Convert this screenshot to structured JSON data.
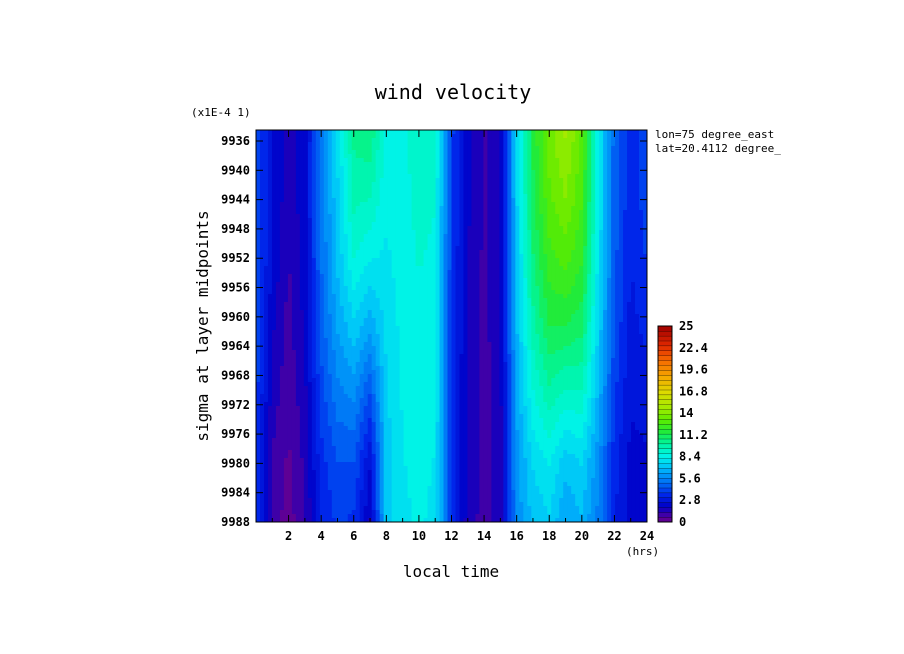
{
  "chart_data": {
    "type": "heatmap",
    "title": "wind velocity",
    "xlabel": "local time",
    "x_unit": "(hrs)",
    "ylabel": "sigma at layer midpoints",
    "y_scale_note": "(x1E-4 1)",
    "annotations": [
      "lon=75 degree_east",
      "lat=20.4112 degree_"
    ],
    "x_ticks": [
      "2",
      "4",
      "6",
      "8",
      "10",
      "12",
      "14",
      "16",
      "18",
      "20",
      "22",
      "24"
    ],
    "x_tick_values": [
      2,
      4,
      6,
      8,
      10,
      12,
      14,
      16,
      18,
      20,
      22,
      24
    ],
    "xlim": [
      0,
      24
    ],
    "y_ticks": [
      "9936",
      "9940",
      "9944",
      "9948",
      "9952",
      "9956",
      "9960",
      "9964",
      "9968",
      "9972",
      "9976",
      "9980",
      "9984",
      "9988"
    ],
    "y_tick_values": [
      9936,
      9940,
      9944,
      9948,
      9952,
      9956,
      9960,
      9964,
      9968,
      9972,
      9976,
      9980,
      9984,
      9988
    ],
    "ylim": [
      9934.5,
      9988
    ],
    "y_inverted": true,
    "colorbar": {
      "ticks": [
        "25",
        "22.4",
        "19.6",
        "16.8",
        "14",
        "11.2",
        "8.4",
        "5.6",
        "2.8",
        "0"
      ],
      "min": 0,
      "max": 25
    },
    "x_nodes": [
      0,
      1,
      2,
      3,
      4,
      5,
      6,
      7,
      8,
      9,
      10,
      11,
      12,
      13,
      14,
      15,
      16,
      17,
      18,
      19,
      20,
      21,
      22,
      23,
      24
    ],
    "y_nodes": [
      9934.5,
      9943.5,
      9952.5,
      9961.5,
      9970.5,
      9979.5,
      9988
    ],
    "z": [
      [
        4.2,
        2.6,
        1.5,
        2.2,
        5.2,
        7.6,
        10.2,
        10.6,
        8.5,
        8.6,
        9.1,
        8.9,
        4.0,
        2.0,
        1.2,
        1.8,
        7.6,
        11.4,
        13.5,
        14.5,
        13.1,
        8.4,
        4.7,
        3.4,
        4.0
      ],
      [
        4.3,
        2.6,
        1.4,
        2.3,
        5.1,
        7.4,
        9.6,
        9.4,
        8.3,
        8.5,
        9.0,
        8.8,
        3.9,
        2.0,
        1.2,
        1.8,
        7.4,
        11.1,
        13.0,
        13.8,
        12.6,
        8.3,
        4.7,
        3.3,
        4.1
      ],
      [
        4.3,
        2.4,
        1.2,
        2.2,
        5.0,
        7.0,
        8.7,
        8.1,
        8.0,
        8.4,
        8.8,
        8.6,
        3.8,
        1.9,
        1.1,
        1.7,
        7.1,
        10.5,
        12.2,
        12.7,
        11.9,
        8.0,
        4.6,
        3.1,
        3.8
      ],
      [
        4.2,
        2.0,
        1.0,
        2.0,
        4.6,
        6.3,
        7.3,
        6.4,
        7.7,
        8.3,
        8.6,
        8.4,
        3.7,
        1.8,
        1.1,
        1.6,
        6.8,
        9.7,
        11.2,
        11.2,
        10.8,
        7.5,
        4.3,
        2.9,
        3.3
      ],
      [
        4.0,
        1.6,
        0.8,
        1.7,
        4.1,
        5.4,
        5.8,
        4.3,
        7.4,
        8.2,
        8.4,
        8.2,
        3.6,
        1.7,
        1.0,
        1.6,
        6.4,
        8.7,
        9.8,
        9.2,
        9.3,
        6.8,
        3.9,
        2.6,
        2.8
      ],
      [
        3.9,
        1.2,
        0.5,
        1.4,
        3.5,
        4.4,
        4.4,
        2.6,
        7.2,
        8.1,
        8.3,
        8.1,
        3.5,
        1.7,
        1.0,
        1.5,
        6.0,
        7.6,
        8.2,
        7.2,
        7.6,
        5.9,
        3.4,
        2.3,
        2.4
      ],
      [
        3.8,
        1.0,
        0.3,
        1.2,
        3.1,
        3.9,
        3.6,
        1.8,
        7.1,
        8.0,
        8.2,
        8.0,
        3.5,
        1.6,
        1.0,
        1.5,
        5.8,
        7.0,
        7.4,
        6.2,
        6.8,
        5.4,
        3.2,
        2.2,
        2.2
      ]
    ]
  }
}
